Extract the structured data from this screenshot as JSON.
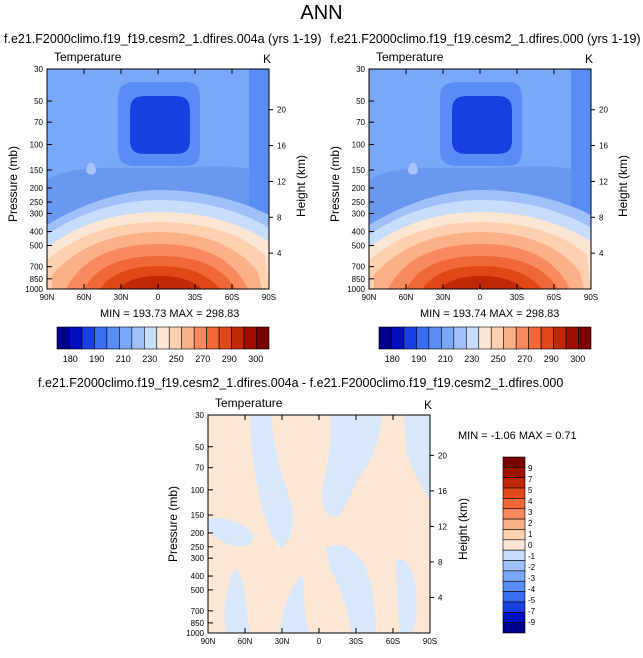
{
  "main_title": "ANN",
  "panel_titles": [
    "f.e21.F2000climo.f19_f19.cesm2_1.dfires.004a (yrs 1-19)",
    "f.e21.F2000climo.f19_f19.cesm2_1.dfires.000 (yrs 1-19)",
    "f.e21.F2000climo.f19_f19.cesm2_1.dfires.004a - f.e21.F2000climo.f19_f19.cesm2_1.dfires.000"
  ],
  "var_label": "Temperature",
  "unit_label": "K",
  "minmax": [
    "MIN = 193.73   MAX = 298.83",
    "MIN = 193.74   MAX = 298.83",
    "MIN = -1.06   MAX =   0.71"
  ],
  "colors": {
    "cold": [
      "#00008c",
      "#0010c0",
      "#1a3fe0",
      "#3a6ef0",
      "#5a8cf5",
      "#7aa8f8",
      "#a0c0fa",
      "#c8dcfc"
    ],
    "neutral": "#fbe6d4",
    "warm": [
      "#fdd0b0",
      "#fcb088",
      "#f98a60",
      "#f06838",
      "#e04818",
      "#c02808",
      "#a01000",
      "#7a0000"
    ],
    "diff_blue": "#d8e8fa",
    "diff_orange": "#fde6d4"
  },
  "chart_data": [
    {
      "type": "contour",
      "title": "f.e21.F2000climo.f19_f19.cesm2_1.dfires.004a (yrs 1-19)",
      "variable": "Temperature",
      "units": "K",
      "xlabel": "",
      "ylabel": "Pressure (mb)",
      "ylabel_right": "Height (km)",
      "x_ticks": [
        "90N",
        "60N",
        "30N",
        "0",
        "30S",
        "60S",
        "90S"
      ],
      "y_ticks": [
        30,
        50,
        70,
        100,
        150,
        200,
        250,
        300,
        400,
        500,
        700,
        850,
        1000
      ],
      "y_log_scale": true,
      "height_ticks": [
        4,
        8,
        12,
        16,
        20
      ],
      "min": 193.73,
      "max": 298.83,
      "colorbar_levels": [
        180,
        190,
        200,
        210,
        220,
        230,
        240,
        250,
        260,
        270,
        280,
        290,
        300
      ],
      "colorbar_labels": [
        180,
        190,
        210,
        230,
        250,
        270,
        290,
        300
      ]
    },
    {
      "type": "contour",
      "title": "f.e21.F2000climo.f19_f19.cesm2_1.dfires.000 (yrs 1-19)",
      "variable": "Temperature",
      "units": "K",
      "xlabel": "",
      "ylabel": "Pressure (mb)",
      "ylabel_right": "Height (km)",
      "x_ticks": [
        "90N",
        "60N",
        "30N",
        "0",
        "30S",
        "60S",
        "90S"
      ],
      "y_ticks": [
        30,
        50,
        70,
        100,
        150,
        200,
        250,
        300,
        400,
        500,
        700,
        850,
        1000
      ],
      "y_log_scale": true,
      "height_ticks": [
        4,
        8,
        12,
        16,
        20
      ],
      "min": 193.74,
      "max": 298.83,
      "colorbar_levels": [
        180,
        190,
        200,
        210,
        220,
        230,
        240,
        250,
        260,
        270,
        280,
        290,
        300
      ],
      "colorbar_labels": [
        180,
        190,
        210,
        230,
        250,
        270,
        290,
        300
      ]
    },
    {
      "type": "contour",
      "title": "f.e21.F2000climo.f19_f19.cesm2_1.dfires.004a - f.e21.F2000climo.f19_f19.cesm2_1.dfires.000",
      "variable": "Temperature",
      "units": "K",
      "xlabel": "",
      "ylabel": "Pressure (mb)",
      "ylabel_right": "Height (km)",
      "x_ticks": [
        "90N",
        "60N",
        "30N",
        "0",
        "30S",
        "60S",
        "90S"
      ],
      "y_ticks": [
        30,
        50,
        70,
        100,
        150,
        200,
        250,
        300,
        400,
        500,
        700,
        850,
        1000
      ],
      "y_log_scale": true,
      "height_ticks": [
        4,
        8,
        12,
        16,
        20
      ],
      "min": -1.06,
      "max": 0.71,
      "colorbar_labels": [
        9,
        7,
        5,
        4,
        3,
        2,
        1,
        0,
        -1,
        -2,
        -3,
        -4,
        -5,
        -7,
        -9
      ]
    }
  ]
}
